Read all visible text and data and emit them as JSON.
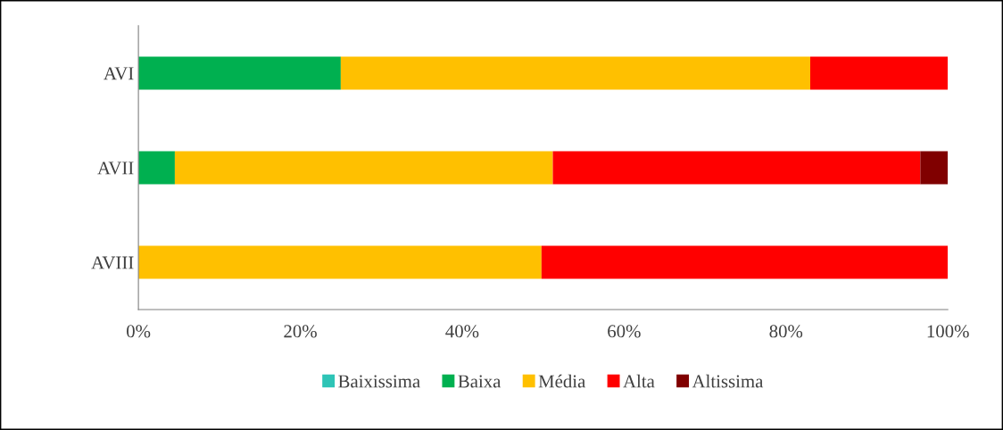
{
  "chart_data": {
    "type": "bar",
    "orientation": "horizontal",
    "stacked": true,
    "categories": [
      "AVI",
      "AVII",
      "AVIII"
    ],
    "series": [
      {
        "name": "Baixissima",
        "color": "#2ec4b6",
        "values": [
          0,
          0,
          0
        ]
      },
      {
        "name": "Baixa",
        "color": "#00b050",
        "values": [
          25,
          4.5,
          0
        ]
      },
      {
        "name": "Média",
        "color": "#ffc000",
        "values": [
          58,
          46.7,
          49.8
        ]
      },
      {
        "name": "Alta",
        "color": "#ff0000",
        "values": [
          17,
          45.4,
          50.2
        ]
      },
      {
        "name": "Altissima",
        "color": "#800000",
        "values": [
          0,
          3.4,
          0
        ]
      }
    ],
    "xlim": [
      0,
      100
    ],
    "xticks": [
      {
        "value": 0,
        "label": "0%"
      },
      {
        "value": 20,
        "label": "20%"
      },
      {
        "value": 40,
        "label": "40%"
      },
      {
        "value": 60,
        "label": "60%"
      },
      {
        "value": 80,
        "label": "80%"
      },
      {
        "value": 100,
        "label": "100%"
      }
    ],
    "grid": false,
    "legend": "bottom"
  }
}
